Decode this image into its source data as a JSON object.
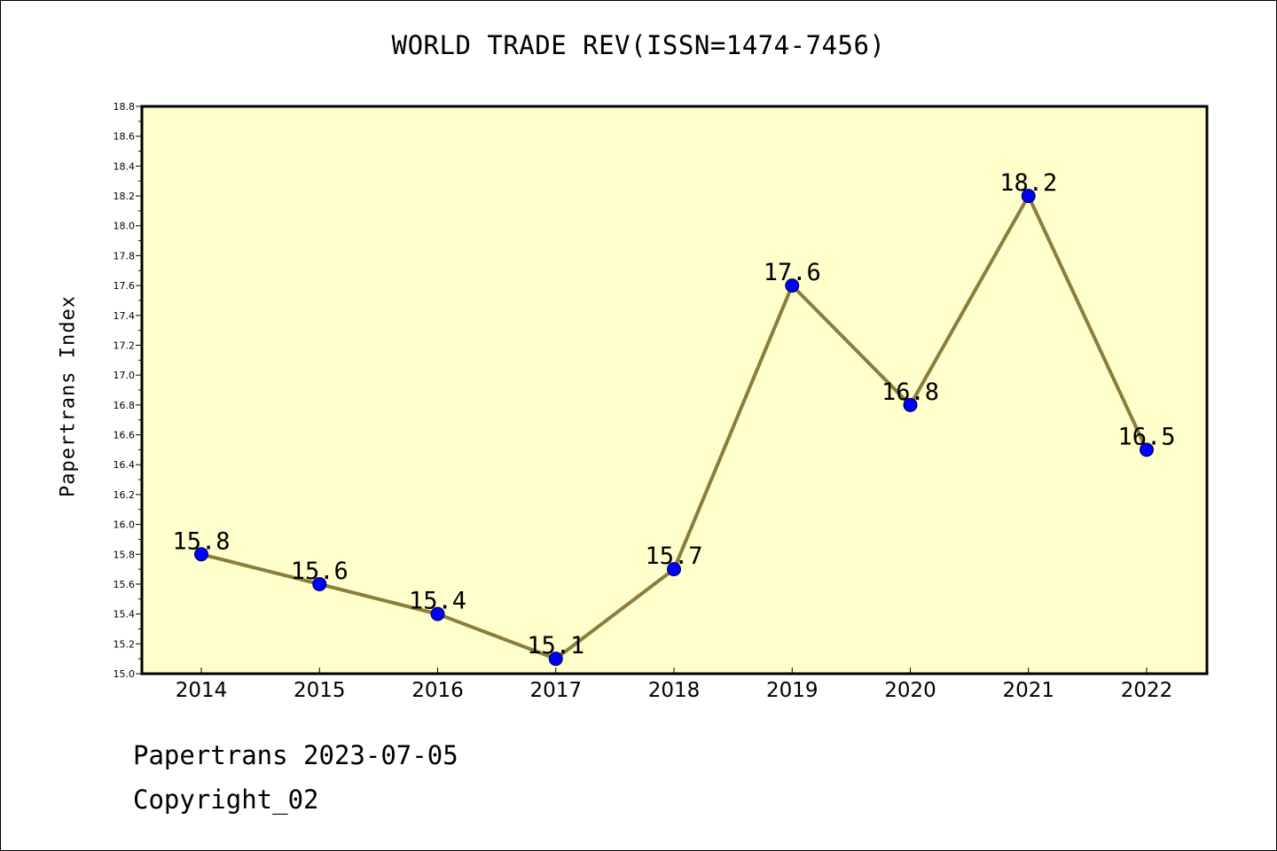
{
  "chart_data": {
    "type": "line",
    "title": "WORLD TRADE REV(ISSN=1474-7456)",
    "ylabel": "Papertrans Index",
    "xlabel": "",
    "categories": [
      "2014",
      "2015",
      "2016",
      "2017",
      "2018",
      "2019",
      "2020",
      "2021",
      "2022"
    ],
    "values": [
      15.8,
      15.6,
      15.4,
      15.1,
      15.7,
      17.6,
      16.8,
      18.2,
      16.5
    ],
    "data_labels": [
      "15.8",
      "15.6",
      "15.4",
      "15.1",
      "15.7",
      "17.6",
      "16.8",
      "18.2",
      "16.5"
    ],
    "ylim": [
      15.0,
      18.8
    ],
    "yticks": [
      "15.0",
      "15.2",
      "15.4",
      "15.6",
      "15.8",
      "16.0",
      "16.2",
      "16.4",
      "16.6",
      "16.8",
      "17.0",
      "17.2",
      "17.4",
      "17.6",
      "17.8",
      "18.0",
      "18.2",
      "18.4",
      "18.6",
      "18.8"
    ],
    "grid": false,
    "colors": {
      "plot_background": "#ffffcc",
      "line": "#8b7d3a",
      "marker": "#0000ff"
    }
  },
  "footer": {
    "date_line": "Papertrans 2023-07-05",
    "copyright_line": "Copyright_02"
  }
}
